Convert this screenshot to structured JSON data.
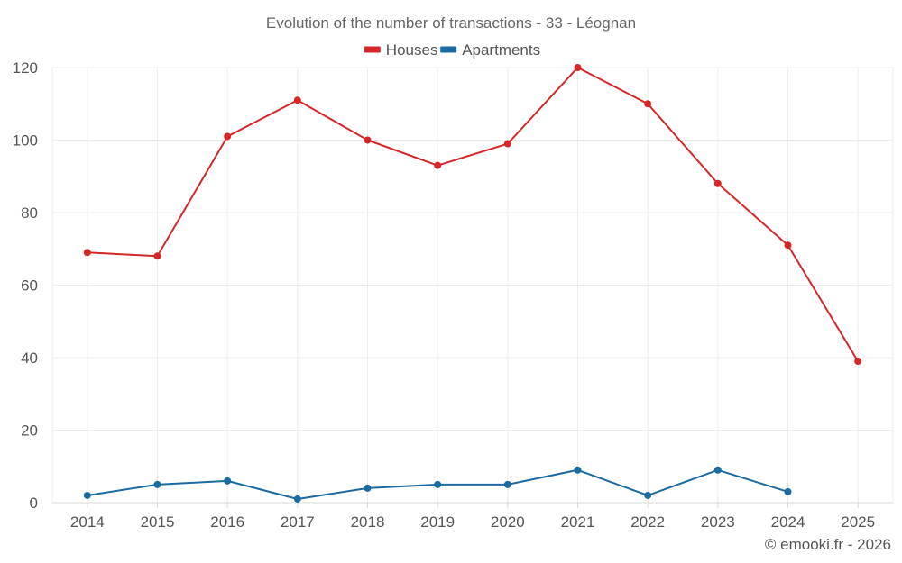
{
  "chart_data": {
    "type": "line",
    "title": "Evolution of the number of transactions - 33 - Léognan",
    "xlabel": "",
    "ylabel": "",
    "categories": [
      "2014",
      "2015",
      "2016",
      "2017",
      "2018",
      "2019",
      "2020",
      "2021",
      "2022",
      "2023",
      "2024",
      "2025"
    ],
    "ylim": [
      0,
      120
    ],
    "yticks": [
      0,
      20,
      40,
      60,
      80,
      100,
      120
    ],
    "grid": true,
    "legend_position": "top-center",
    "series": [
      {
        "name": "Houses",
        "color": "#d62728",
        "values": [
          69,
          68,
          101,
          111,
          100,
          93,
          99,
          120,
          110,
          88,
          71,
          39
        ]
      },
      {
        "name": "Apartments",
        "color": "#1b6aa0",
        "values": [
          2,
          5,
          6,
          1,
          4,
          5,
          5,
          9,
          2,
          9,
          3,
          null
        ]
      }
    ]
  },
  "credit": "© emooki.fr - 2026"
}
